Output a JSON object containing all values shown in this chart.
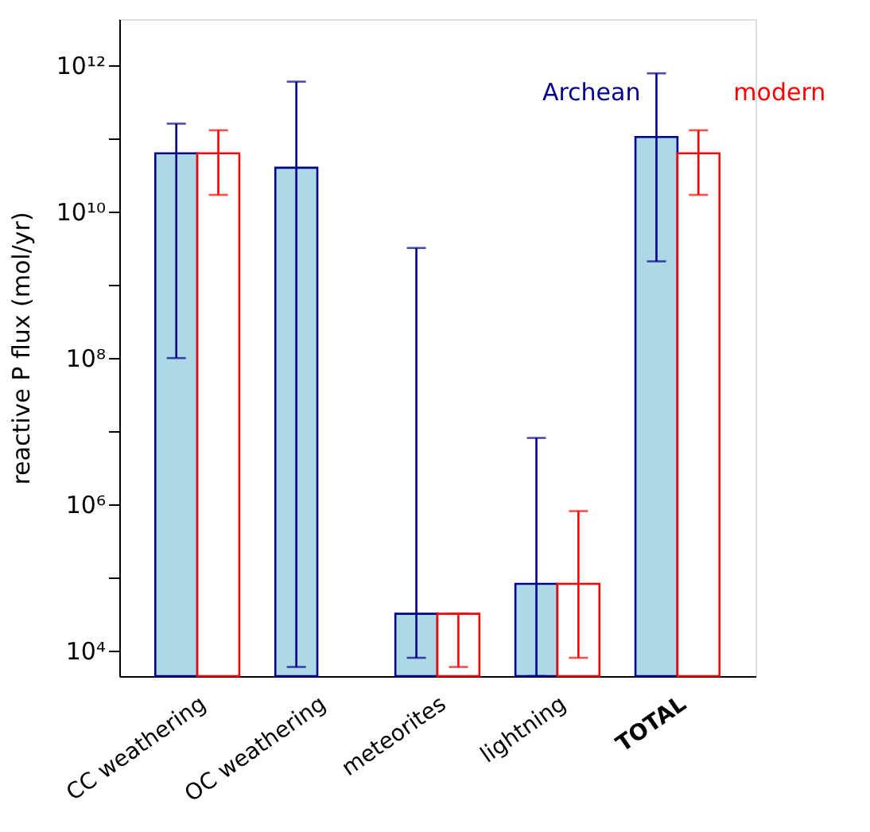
{
  "chart_data": {
    "type": "bar",
    "ylabel": "reactive P flux (mol/yr)",
    "categories": [
      "CC weathering",
      "OC weathering",
      "meteorites",
      "lightning",
      "TOTAL"
    ],
    "series": [
      {
        "name": "Archean",
        "color": "#00008b",
        "values": [
          63000000000.0,
          40000000000.0,
          32000.0,
          82000.0,
          105000000000.0
        ],
        "errors": [
          [
            100000000.0,
            160000000000.0
          ],
          [
            6000,
            600000000000.0
          ],
          [
            8000,
            3200000000.0
          ],
          [
            4500,
            8100000.0
          ],
          [
            2100000000.0,
            780000000000.0
          ]
        ]
      },
      {
        "name": "modern",
        "color": "#ff0000",
        "values": [
          63000000000.0,
          null,
          32000.0,
          82000.0,
          63000000000.0
        ],
        "errors": [
          [
            17000000000.0,
            130000000000.0
          ],
          null,
          [
            6000,
            32000.0
          ],
          [
            8000,
            810000.0
          ],
          [
            17000000000.0,
            130000000000.0
          ]
        ]
      }
    ],
    "log": true,
    "ylim": [
      4500,
      4300000000000.0
    ],
    "yticks": [
      {
        "value": 10000.0,
        "label": "10⁴"
      },
      {
        "value": 100000.0,
        "label": null
      },
      {
        "value": 1000000.0,
        "label": "10⁶"
      },
      {
        "value": 10000000.0,
        "label": null
      },
      {
        "value": 100000000.0,
        "label": "10⁸"
      },
      {
        "value": 1000000000.0,
        "label": null
      },
      {
        "value": 10000000000.0,
        "label": "10¹⁰"
      },
      {
        "value": 100000000000.0,
        "label": null
      },
      {
        "value": 1000000000000.0,
        "label": "10¹²"
      }
    ],
    "grid": false,
    "legend": false
  }
}
